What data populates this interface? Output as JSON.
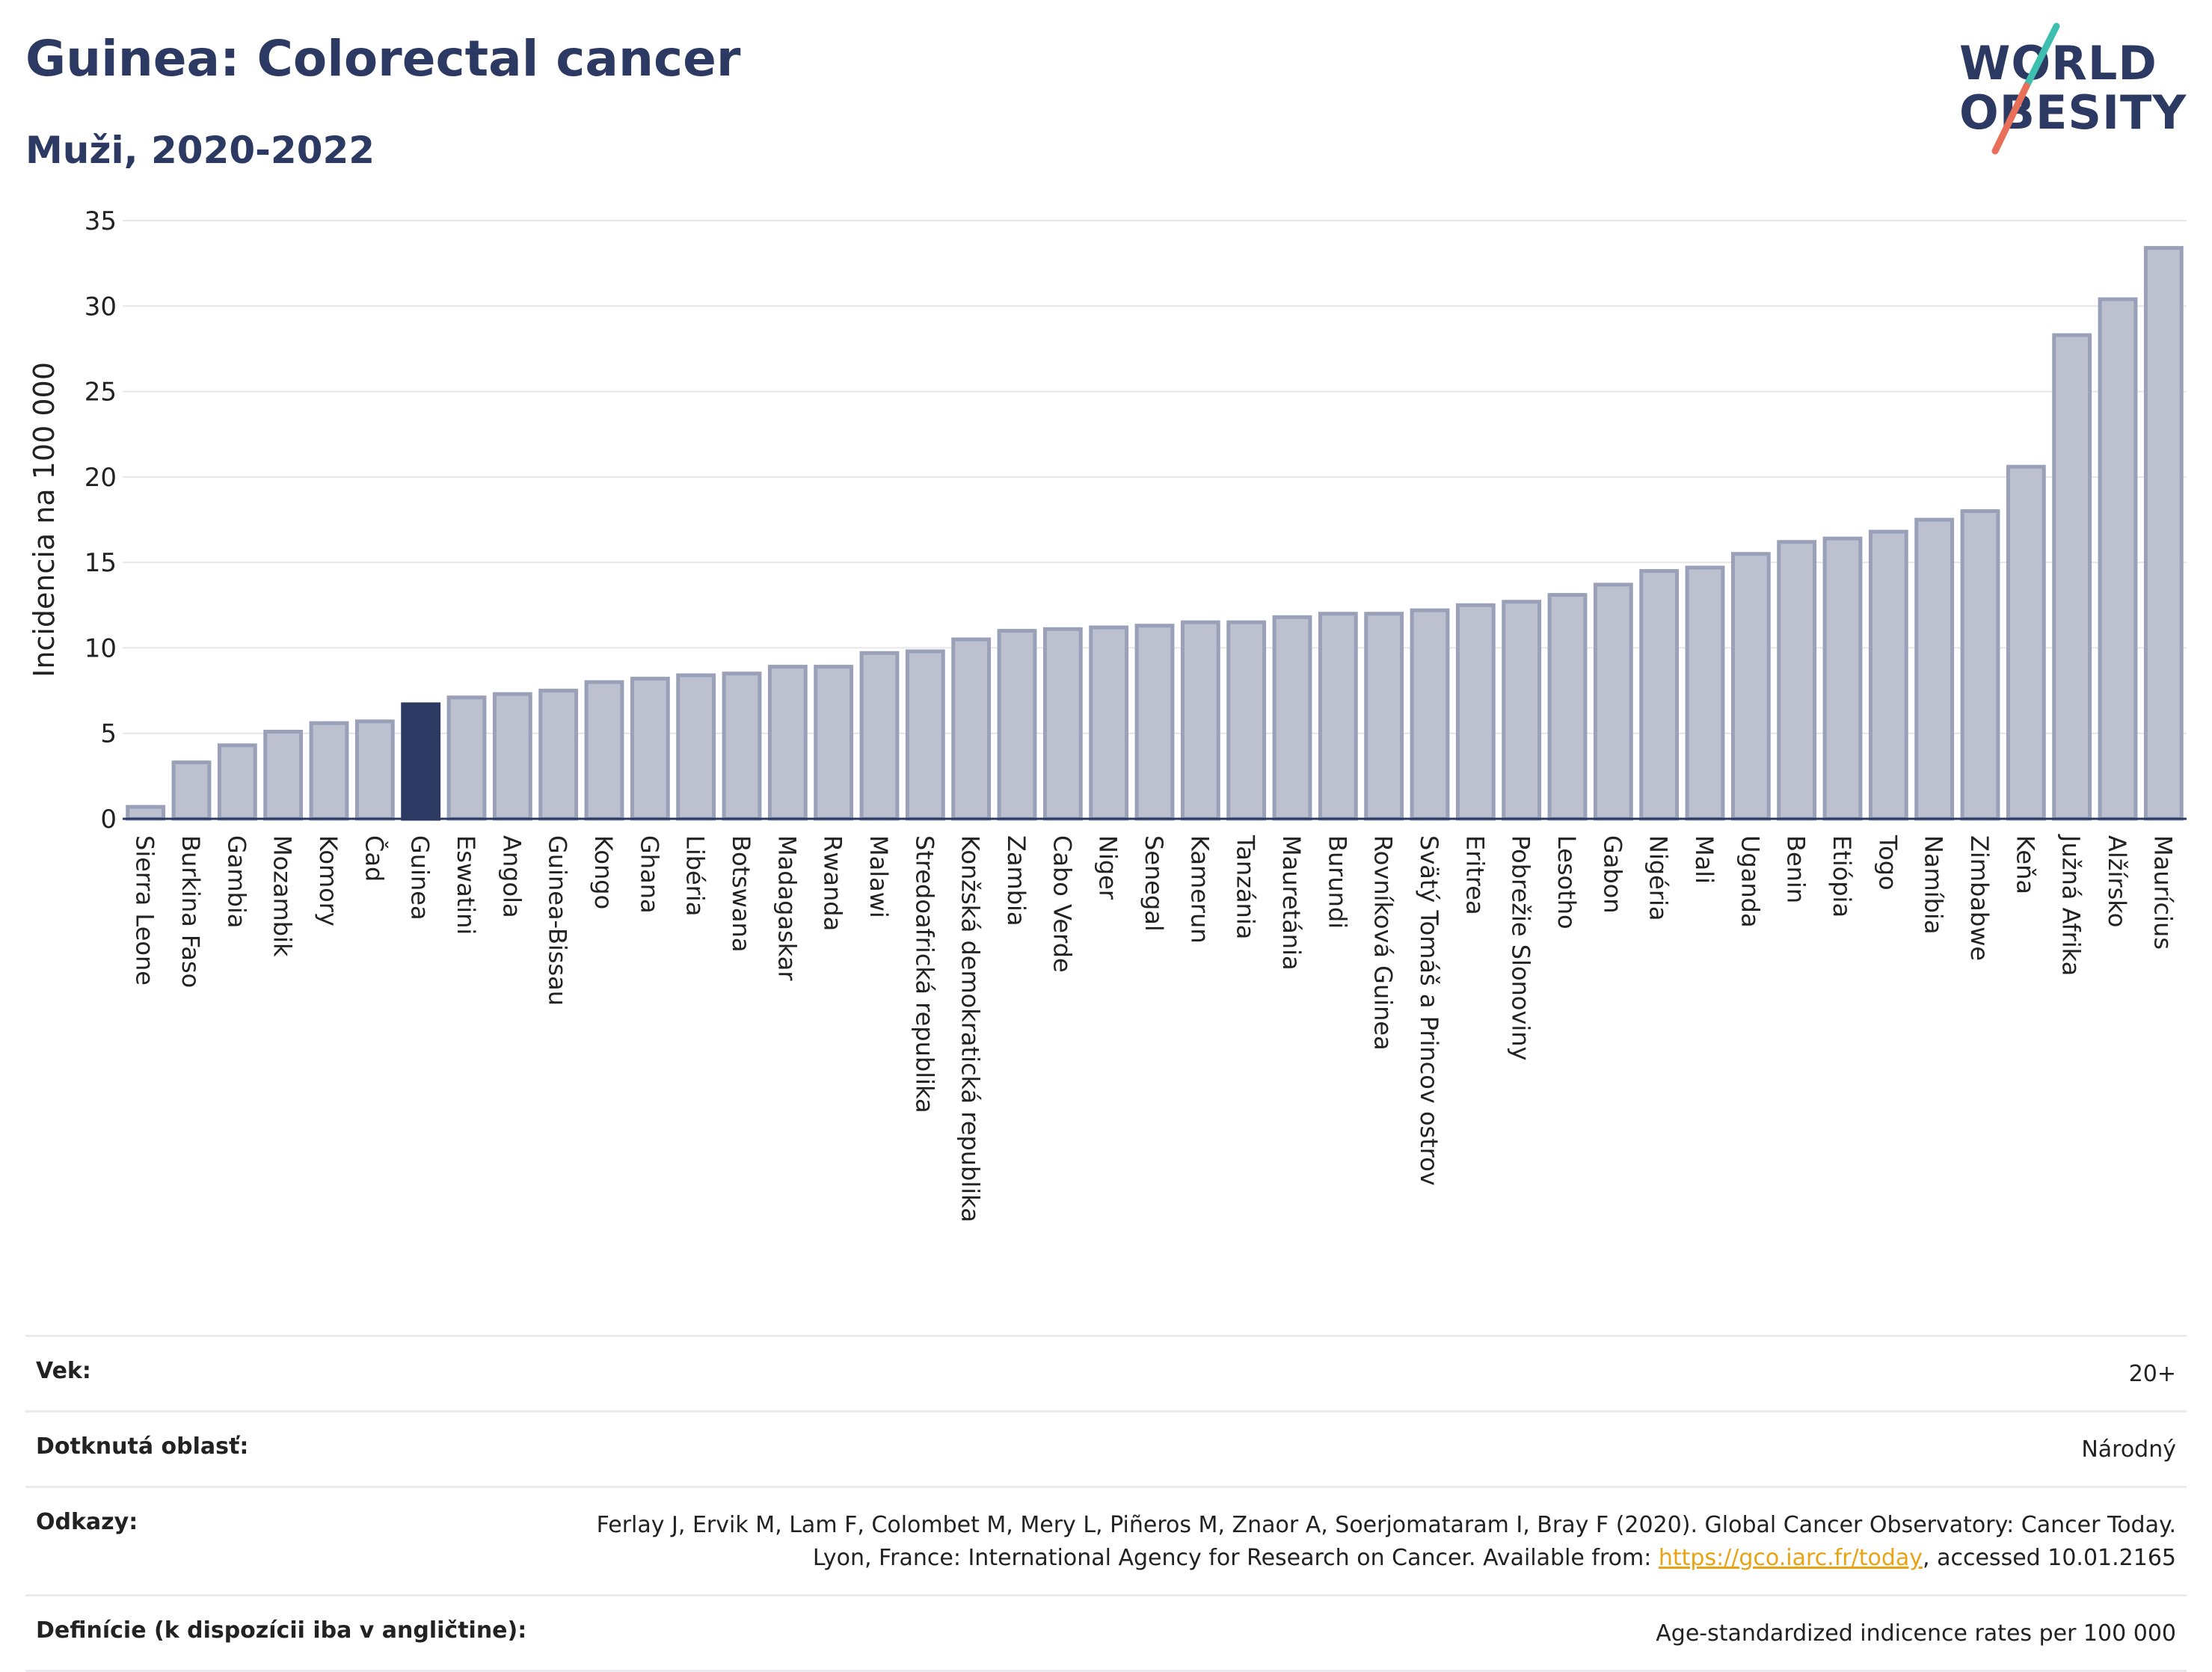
{
  "header": {
    "title": "Guinea: Colorectal cancer",
    "subtitle": "Muži, 2020-2022"
  },
  "logo": {
    "line1": "WORLD",
    "line2": "OBESITY"
  },
  "colors": {
    "bar": "#bcc0cf",
    "bar_stroke": "#9aa0b8",
    "highlight": "#2c3a63",
    "title": "#2c3a63",
    "link": "#e8a317"
  },
  "chart_data": {
    "type": "bar",
    "ylabel": "Incidencia na 100 000",
    "ylim": [
      0,
      35
    ],
    "yticks": [
      0,
      5,
      10,
      15,
      20,
      25,
      30,
      35
    ],
    "grid": true,
    "highlight": "Guinea",
    "categories": [
      "Sierra Leone",
      "Burkina Faso",
      "Gambia",
      "Mozambik",
      "Komory",
      "Čad",
      "Guinea",
      "Eswatini",
      "Angola",
      "Guinea-Bissau",
      "Kongo",
      "Ghana",
      "Libéria",
      "Botswana",
      "Madagaskar",
      "Rwanda",
      "Malawi",
      "Stredoafrická republika",
      "Konžská demokratická republika",
      "Zambia",
      "Cabo Verde",
      "Niger",
      "Senegal",
      "Kamerun",
      "Tanzánia",
      "Mauretánia",
      "Burundi",
      "Rovníková Guinea",
      "Svätý Tomáš a Princov ostrov",
      "Eritrea",
      "Pobrežie Slonoviny",
      "Lesotho",
      "Gabon",
      "Nigéria",
      "Mali",
      "Uganda",
      "Benin",
      "Etiópia",
      "Togo",
      "Namíbia",
      "Zimbabwe",
      "Keňa",
      "Južná Afrika",
      "Alžírsko",
      "Maurícius"
    ],
    "values": [
      0.7,
      3.3,
      4.3,
      5.1,
      5.6,
      5.7,
      6.7,
      7.1,
      7.3,
      7.5,
      8.0,
      8.2,
      8.4,
      8.5,
      8.9,
      8.9,
      9.7,
      9.8,
      10.5,
      11.0,
      11.1,
      11.2,
      11.3,
      11.5,
      11.5,
      11.8,
      12.0,
      12.0,
      12.2,
      12.5,
      12.7,
      13.1,
      13.7,
      14.5,
      14.7,
      15.5,
      16.2,
      16.4,
      16.8,
      17.5,
      18.0,
      20.6,
      28.3,
      30.4,
      33.4
    ]
  },
  "info": [
    {
      "label": "Vek:",
      "value": "20+"
    },
    {
      "label": "Dotknutá oblasť:",
      "value": "Národný"
    },
    {
      "label": "Odkazy:",
      "value_pre": "Ferlay J, Ervik M, Lam F, Colombet M, Mery L, Piñeros M, Znaor A, Soerjomataram I, Bray F (2020). Global Cancer Observatory: Cancer Today. Lyon, France: International Agency for Research on Cancer. Available from: ",
      "link": "https://gco.iarc.fr/today",
      "value_post": ", accessed 10.01.2165"
    },
    {
      "label": "Definície (k dispozícii iba v angličtine):",
      "value": "Age-standardized indicence rates per 100 000"
    }
  ]
}
